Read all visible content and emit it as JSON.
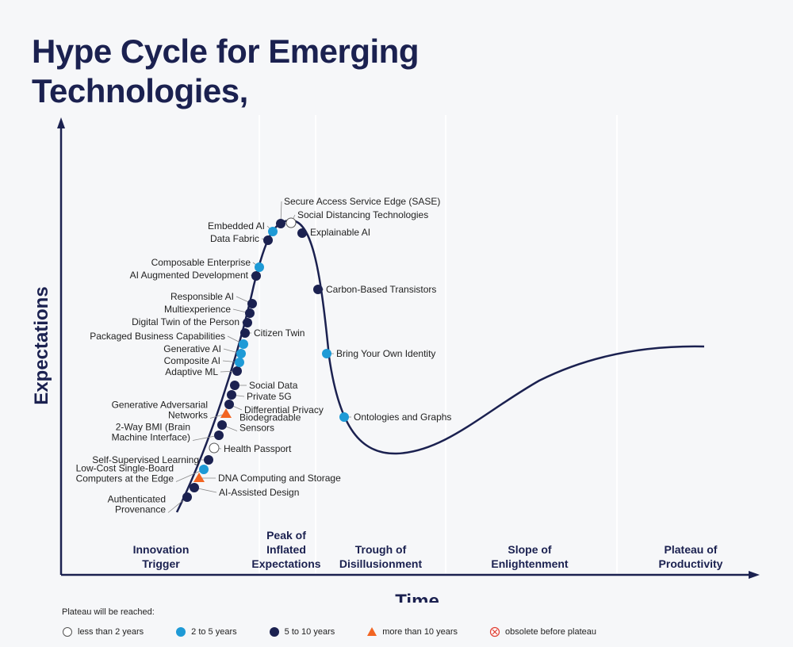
{
  "title_lines": [
    "Hype Cycle for Emerging",
    "Technologies,"
  ],
  "chart_data": {
    "type": "scatter",
    "xlabel": "Time",
    "ylabel": "Expectations",
    "phases": [
      "Innovation\nTrigger",
      "Peak of\nInflated\nExpectations",
      "Trough of\nDisillusionment",
      "Slope of\nEnlightenment",
      "Plateau of\nProductivity"
    ],
    "legend_title": "Plateau will be reached:",
    "legend": [
      {
        "key": "lt2",
        "label": "less than 2 years",
        "symbol": "open-circle",
        "color": "#ffffff"
      },
      {
        "key": "2to5",
        "label": "2 to 5 years",
        "symbol": "circle",
        "color": "#1e9ad6"
      },
      {
        "key": "5to10",
        "label": "5 to 10 years",
        "symbol": "circle",
        "color": "#1b2150"
      },
      {
        "key": "gt10",
        "label": "more than 10 years",
        "symbol": "triangle",
        "color": "#f26522"
      },
      {
        "key": "obs",
        "label": "obsolete before plateau",
        "symbol": "crossed-circle",
        "color": "#e03c31"
      }
    ],
    "points": [
      {
        "name": "Authenticated\nProvenance",
        "cat": "5to10"
      },
      {
        "name": "AI-Assisted Design",
        "cat": "5to10"
      },
      {
        "name": "DNA Computing and Storage",
        "cat": "gt10"
      },
      {
        "name": "Low-Cost Single-Board\nComputers at the Edge",
        "cat": "2to5"
      },
      {
        "name": "Self-Supervised Learning",
        "cat": "5to10"
      },
      {
        "name": "Health Passport",
        "cat": "lt2"
      },
      {
        "name": "2-Way BMI (Brain\nMachine Interface)",
        "cat": "5to10"
      },
      {
        "name": "Biodegradable\nSensors",
        "cat": "5to10"
      },
      {
        "name": "Generative Adversarial\nNetworks",
        "cat": "gt10"
      },
      {
        "name": "Differential Privacy",
        "cat": "5to10"
      },
      {
        "name": "Private 5G",
        "cat": "5to10"
      },
      {
        "name": "Social Data",
        "cat": "5to10"
      },
      {
        "name": "Adaptive ML",
        "cat": "5to10"
      },
      {
        "name": "Composite AI",
        "cat": "2to5"
      },
      {
        "name": "Generative AI",
        "cat": "2to5"
      },
      {
        "name": "Packaged Business Capabilities",
        "cat": "2to5"
      },
      {
        "name": "Citizen Twin",
        "cat": "5to10"
      },
      {
        "name": "Digital Twin of the Person",
        "cat": "5to10"
      },
      {
        "name": "Multiexperience",
        "cat": "5to10"
      },
      {
        "name": "Responsible AI",
        "cat": "5to10"
      },
      {
        "name": "AI Augmented Development",
        "cat": "5to10"
      },
      {
        "name": "Composable Enterprise",
        "cat": "2to5"
      },
      {
        "name": "Data Fabric",
        "cat": "5to10"
      },
      {
        "name": "Embedded AI",
        "cat": "2to5"
      },
      {
        "name": "Secure Access Service Edge (SASE)",
        "cat": "5to10"
      },
      {
        "name": "Social Distancing Technologies",
        "cat": "lt2"
      },
      {
        "name": "Explainable AI",
        "cat": "5to10"
      },
      {
        "name": "Carbon-Based Transistors",
        "cat": "5to10"
      },
      {
        "name": "Bring Your Own Identity",
        "cat": "2to5"
      },
      {
        "name": "Ontologies and Graphs",
        "cat": "2to5"
      }
    ]
  }
}
